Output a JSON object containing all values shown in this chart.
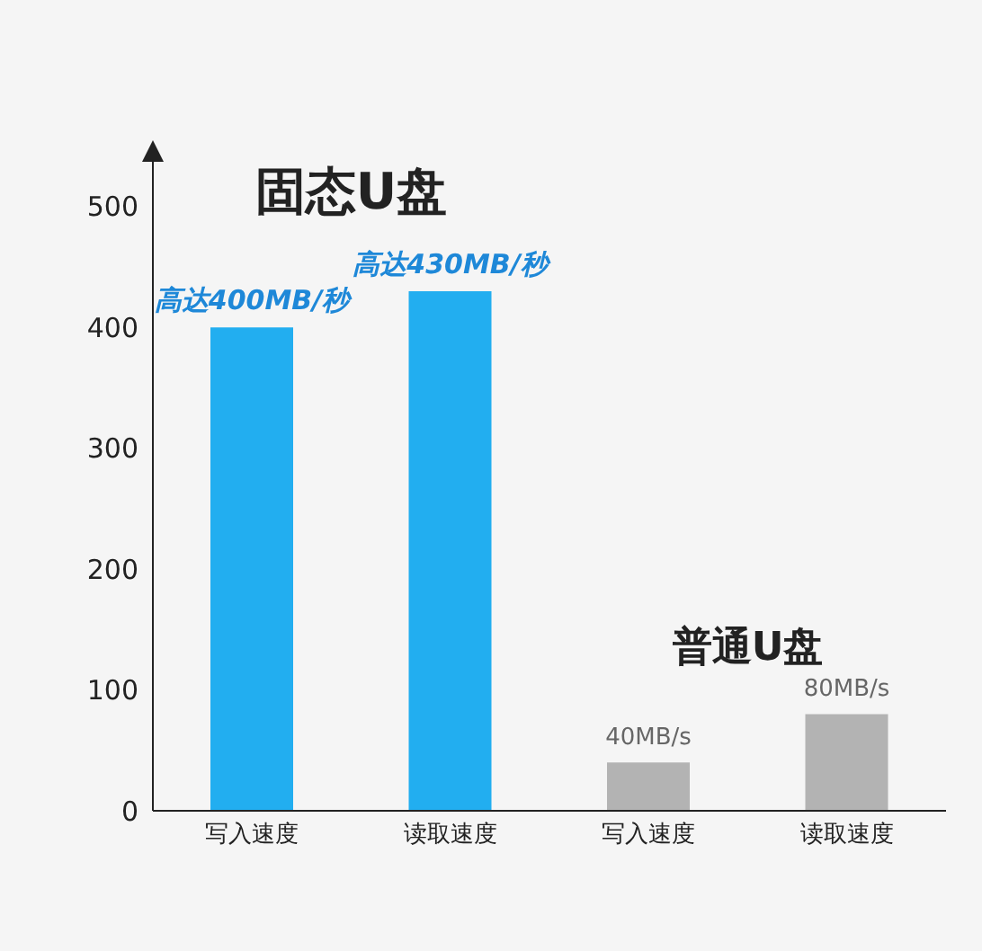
{
  "chart_data": {
    "type": "bar",
    "categories": [
      "写入速度",
      "读取速度",
      "写入速度",
      "读取速度"
    ],
    "values": [
      400,
      430,
      40,
      80
    ],
    "colors": [
      "#22aef0",
      "#22aef0",
      "#b3b3b3",
      "#b3b3b3"
    ],
    "value_labels": [
      "高达400MB/秒",
      "高达430MB/秒",
      "40MB/s",
      "80MB/s"
    ],
    "ylim": [
      0,
      540
    ],
    "yticks": [
      0,
      100,
      200,
      300,
      400,
      500
    ],
    "annotations": [
      "固态U盘",
      "普通U盘"
    ]
  }
}
